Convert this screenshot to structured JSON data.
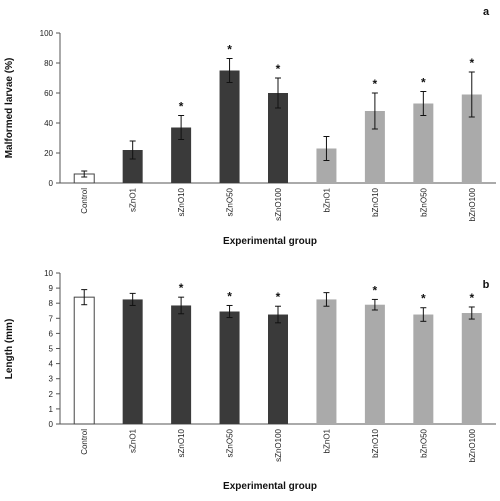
{
  "chart_data": [
    {
      "type": "bar",
      "panel_label": "a",
      "categories": [
        "Control",
        "sZnO1",
        "sZnO10",
        "sZnO50",
        "sZnO100",
        "bZnO1",
        "bZnO10",
        "bZnO50",
        "bZnO100"
      ],
      "values": [
        6,
        22,
        37,
        75,
        60,
        23,
        48,
        53,
        59
      ],
      "error": [
        2,
        6,
        8,
        8,
        10,
        8,
        12,
        8,
        15
      ],
      "significant": [
        "",
        "",
        "*",
        "*",
        "*",
        "",
        "*",
        "*",
        "*"
      ],
      "bar_colors": [
        "#ffffff",
        "#3a3a3a",
        "#3a3a3a",
        "#3a3a3a",
        "#3a3a3a",
        "#aaaaaa",
        "#aaaaaa",
        "#aaaaaa",
        "#aaaaaa"
      ],
      "ylabel": "Malformed larvae (%)",
      "xlabel": "Experimental group",
      "ylim": [
        0,
        100
      ],
      "yticks": [
        "0",
        "20",
        "40",
        "60",
        "80",
        "100"
      ],
      "grid": false
    },
    {
      "type": "bar",
      "panel_label": "b",
      "categories": [
        "Control",
        "sZnO1",
        "sZnO10",
        "sZnO50",
        "sZnO100",
        "bZnO1",
        "bZnO10",
        "bZnO50",
        "bZnO100"
      ],
      "values": [
        8.4,
        8.25,
        7.85,
        7.45,
        7.25,
        8.25,
        7.9,
        7.25,
        7.35
      ],
      "error": [
        0.5,
        0.4,
        0.55,
        0.4,
        0.55,
        0.45,
        0.35,
        0.45,
        0.4
      ],
      "significant": [
        "",
        "",
        "*",
        "*",
        "*",
        "",
        "*",
        "*",
        "*"
      ],
      "bar_colors": [
        "#ffffff",
        "#3a3a3a",
        "#3a3a3a",
        "#3a3a3a",
        "#3a3a3a",
        "#aaaaaa",
        "#aaaaaa",
        "#aaaaaa",
        "#aaaaaa"
      ],
      "ylabel": "Length (mm)",
      "xlabel": "Experimental group",
      "ylim": [
        0,
        10
      ],
      "yticks": [
        "0",
        "1",
        "2",
        "3",
        "4",
        "5",
        "6",
        "7",
        "8",
        "9",
        "10"
      ],
      "grid": false
    }
  ]
}
